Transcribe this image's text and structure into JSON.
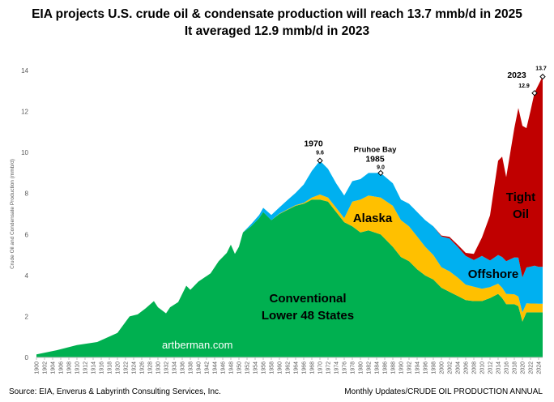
{
  "chart_data": {
    "type": "area",
    "stacked": true,
    "title": "EIA projects U.S. crude oil & condensate production will reach 13.7 mmb/d in 2025",
    "subtitle": "It averaged 12.9 mmb/d in 2023",
    "ylabel": "Crude Oil and Condensate Production (mmb/d)",
    "xlabel": "",
    "ylim": [
      0,
      14
    ],
    "yticks": [
      0,
      2,
      4,
      6,
      8,
      10,
      12,
      14
    ],
    "xlim": [
      1900,
      2025
    ],
    "xtick_step": 2,
    "grid": false,
    "x": [
      1900,
      1905,
      1910,
      1915,
      1920,
      1923,
      1925,
      1927,
      1929,
      1930,
      1932,
      1933,
      1935,
      1937,
      1938,
      1940,
      1943,
      1945,
      1947,
      1948,
      1949,
      1950,
      1951,
      1953,
      1955,
      1956,
      1958,
      1960,
      1962,
      1964,
      1966,
      1968,
      1970,
      1972,
      1974,
      1976,
      1978,
      1980,
      1982,
      1985,
      1988,
      1990,
      1992,
      1994,
      1996,
      1998,
      2000,
      2002,
      2004,
      2006,
      2008,
      2010,
      2012,
      2014,
      2015,
      2016,
      2018,
      2019,
      2020,
      2021,
      2022,
      2023,
      2024,
      2025
    ],
    "series": [
      {
        "name": "Conventional Lower 48 States",
        "color": "#00b050",
        "label_lines": [
          "Conventional",
          "Lower 48 States"
        ],
        "values": [
          0.15,
          0.35,
          0.6,
          0.75,
          1.2,
          2.0,
          2.1,
          2.4,
          2.75,
          2.45,
          2.15,
          2.45,
          2.7,
          3.5,
          3.3,
          3.7,
          4.1,
          4.7,
          5.1,
          5.5,
          5.05,
          5.4,
          6.1,
          6.4,
          6.8,
          7.1,
          6.7,
          7.0,
          7.2,
          7.4,
          7.5,
          7.7,
          7.7,
          7.6,
          7.1,
          6.6,
          6.4,
          6.1,
          6.2,
          6.0,
          5.4,
          4.9,
          4.7,
          4.3,
          4.0,
          3.8,
          3.4,
          3.2,
          3.0,
          2.8,
          2.75,
          2.75,
          2.9,
          3.1,
          2.9,
          2.6,
          2.6,
          2.5,
          1.75,
          2.2,
          2.2,
          2.2,
          2.2,
          2.2
        ]
      },
      {
        "name": "Alaska",
        "color": "#ffc000",
        "label_lines": [
          "Alaska"
        ],
        "values": [
          0,
          0,
          0,
          0,
          0,
          0,
          0,
          0,
          0,
          0,
          0,
          0,
          0,
          0,
          0,
          0,
          0,
          0,
          0,
          0,
          0,
          0,
          0,
          0,
          0,
          0,
          0,
          0.02,
          0.03,
          0.03,
          0.04,
          0.1,
          0.25,
          0.2,
          0.2,
          0.2,
          1.2,
          1.6,
          1.7,
          1.8,
          2.0,
          1.8,
          1.7,
          1.6,
          1.4,
          1.2,
          1.0,
          1.0,
          0.9,
          0.75,
          0.7,
          0.6,
          0.53,
          0.5,
          0.5,
          0.5,
          0.48,
          0.47,
          0.45,
          0.44,
          0.43,
          0.43,
          0.42,
          0.42
        ]
      },
      {
        "name": "Offshore",
        "color": "#00b0f0",
        "label_lines": [
          "Offshore"
        ],
        "values": [
          0,
          0,
          0,
          0,
          0,
          0,
          0,
          0,
          0,
          0,
          0,
          0,
          0,
          0,
          0,
          0,
          0,
          0,
          0,
          0,
          0,
          0,
          0,
          0.1,
          0.15,
          0.2,
          0.25,
          0.3,
          0.45,
          0.6,
          0.9,
          1.3,
          1.65,
          1.4,
          1.2,
          1.1,
          1.0,
          1.0,
          1.1,
          1.2,
          1.1,
          1.0,
          1.1,
          1.2,
          1.3,
          1.4,
          1.5,
          1.6,
          1.5,
          1.4,
          1.3,
          1.6,
          1.3,
          1.4,
          1.5,
          1.6,
          1.8,
          1.9,
          1.7,
          1.75,
          1.8,
          1.85,
          1.8,
          1.8
        ]
      },
      {
        "name": "Tight Oil",
        "color": "#c00000",
        "label_lines": [
          "Tight",
          "Oil"
        ],
        "values": [
          0,
          0,
          0,
          0,
          0,
          0,
          0,
          0,
          0,
          0,
          0,
          0,
          0,
          0,
          0,
          0,
          0,
          0,
          0,
          0,
          0,
          0,
          0,
          0,
          0,
          0,
          0,
          0,
          0,
          0,
          0,
          0,
          0,
          0,
          0,
          0,
          0,
          0,
          0,
          0,
          0,
          0,
          0,
          0,
          0,
          0,
          0.05,
          0.08,
          0.1,
          0.15,
          0.3,
          0.9,
          2.2,
          4.6,
          4.9,
          4.1,
          6.3,
          7.3,
          7.4,
          6.8,
          7.6,
          8.45,
          8.9,
          9.3
        ]
      }
    ],
    "annotations": [
      {
        "year": 1970,
        "value": 9.6,
        "label": "1970",
        "value_label": "9.6"
      },
      {
        "year": 1985,
        "value": 9.0,
        "label_top": "Pruhoe Bay",
        "label": "1985",
        "value_label": "9.0"
      },
      {
        "year": 2023,
        "value": 12.9,
        "label": "2023",
        "value_label": "12.9"
      },
      {
        "year": 2025,
        "value": 13.7,
        "label": "",
        "value_label": "13.7"
      }
    ]
  },
  "watermark": "artberman.com",
  "footer": {
    "source": "Source: EIA, Enverus & Labyrinth Consulting Services, Inc.",
    "right": "Monthly Updates/CRUDE OIL PRODUCTION ANNUAL"
  }
}
